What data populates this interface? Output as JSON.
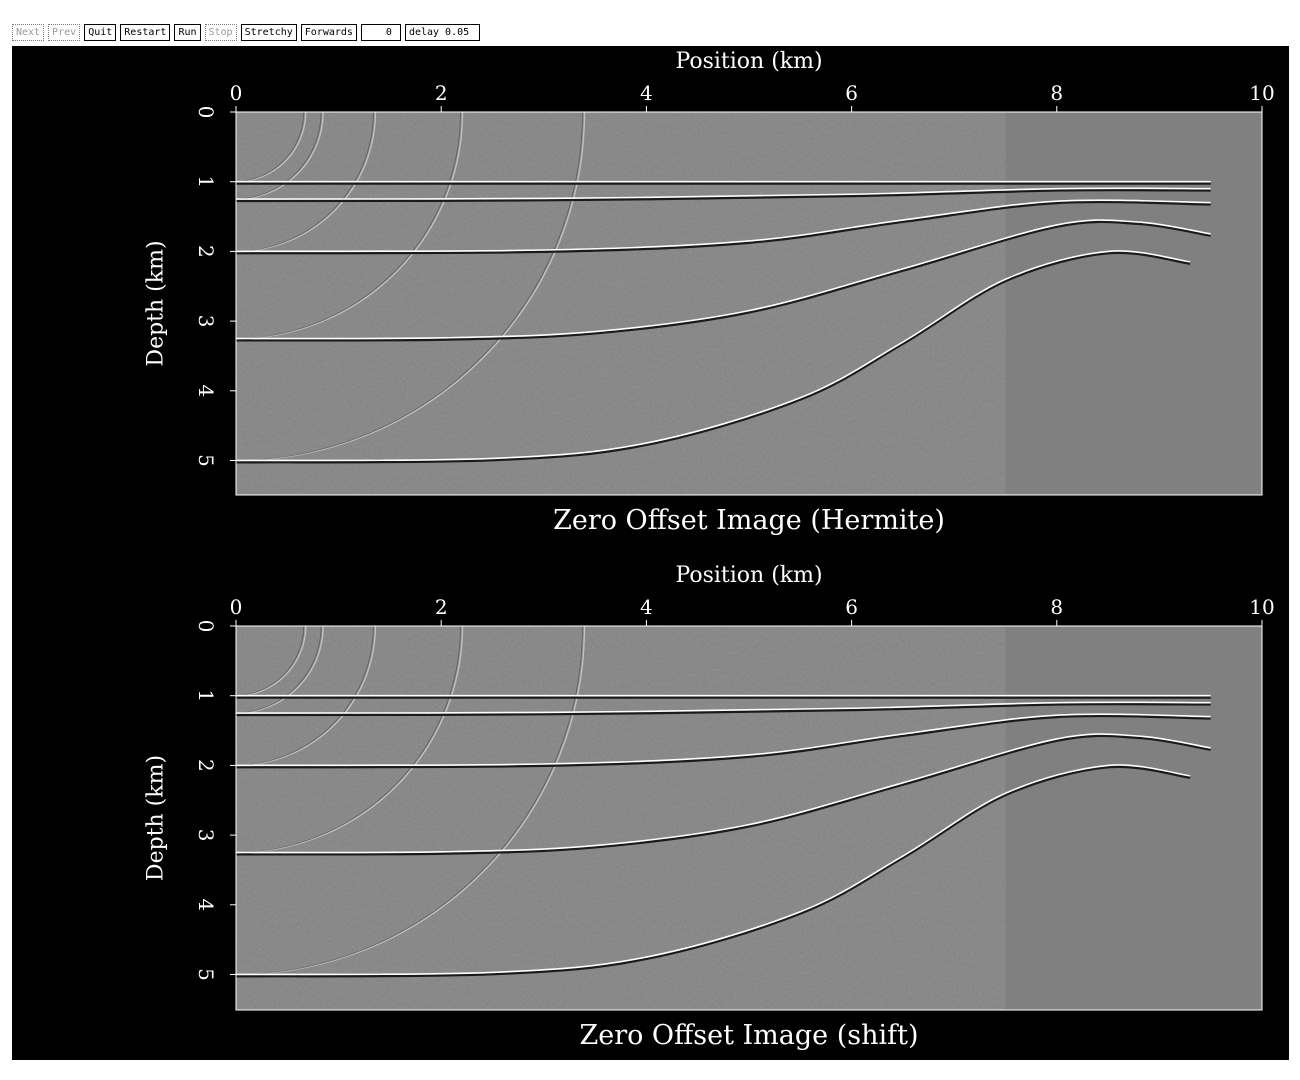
{
  "toolbar": {
    "buttons": [
      {
        "label": "Next",
        "enabled": false
      },
      {
        "label": "Prev",
        "enabled": false
      },
      {
        "label": "Quit",
        "enabled": true
      },
      {
        "label": "Restart",
        "enabled": true
      },
      {
        "label": "Run",
        "enabled": true
      },
      {
        "label": "Stop",
        "enabled": false
      },
      {
        "label": "Stretchy",
        "enabled": true
      },
      {
        "label": "Forwards",
        "enabled": true
      }
    ],
    "frame_value": "0",
    "delay_value": "delay 0.05"
  },
  "colors": {
    "background": "#000000",
    "panel_gray": "#808080",
    "ink": "#ffffff"
  },
  "panels": [
    {
      "title": "Zero Offset Image (Hermite)",
      "xlabel": "Position (km)",
      "ylabel": "Depth (km)",
      "xticks": [
        "0",
        "2",
        "4",
        "6",
        "8",
        "10"
      ],
      "yticks": [
        "0",
        "1",
        "2",
        "3",
        "4",
        "5"
      ]
    },
    {
      "title": "Zero Offset Image (shift)",
      "xlabel": "Position (km)",
      "ylabel": "Depth (km)",
      "xticks": [
        "0",
        "2",
        "4",
        "6",
        "8",
        "10"
      ],
      "yticks": [
        "0",
        "1",
        "2",
        "3",
        "4",
        "5"
      ]
    }
  ],
  "image_model": {
    "xlim": [
      0,
      10
    ],
    "ylim": [
      0,
      5.5
    ],
    "reflectors_km": [
      [
        [
          0,
          1.0
        ],
        [
          9.5,
          1.0
        ]
      ],
      [
        [
          0,
          1.25
        ],
        [
          3,
          1.24
        ],
        [
          6,
          1.18
        ],
        [
          8,
          1.1
        ],
        [
          9.5,
          1.1
        ]
      ],
      [
        [
          0,
          2.0
        ],
        [
          3,
          1.98
        ],
        [
          5,
          1.85
        ],
        [
          6.5,
          1.55
        ],
        [
          8,
          1.28
        ],
        [
          9.5,
          1.3
        ]
      ],
      [
        [
          0,
          3.25
        ],
        [
          2,
          3.24
        ],
        [
          3.5,
          3.15
        ],
        [
          5,
          2.85
        ],
        [
          6.5,
          2.25
        ],
        [
          8,
          1.62
        ],
        [
          8.8,
          1.58
        ],
        [
          9.5,
          1.75
        ]
      ],
      [
        [
          0,
          5.0
        ],
        [
          2.5,
          4.97
        ],
        [
          4,
          4.75
        ],
        [
          5.5,
          4.1
        ],
        [
          6.5,
          3.3
        ],
        [
          7.5,
          2.4
        ],
        [
          8.5,
          2.0
        ],
        [
          9.3,
          2.15
        ]
      ]
    ],
    "arcs_km": [
      {
        "x0": 0,
        "z0": 1.0
      },
      {
        "x0": 0,
        "z0": 1.25
      },
      {
        "x0": 0,
        "z0": 2.0
      },
      {
        "x0": 0,
        "z0": 3.25
      },
      {
        "x0": 0,
        "z0": 5.0
      }
    ]
  }
}
